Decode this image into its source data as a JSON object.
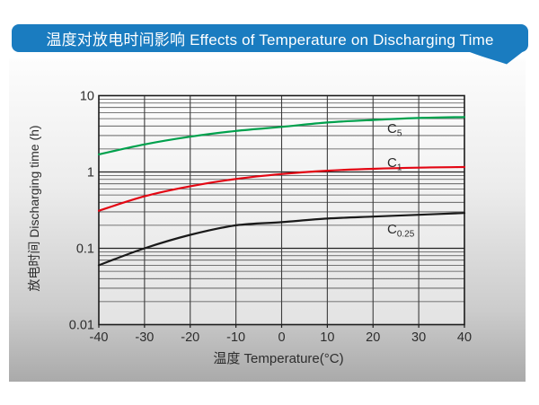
{
  "header": {
    "title": "温度对放电时间影响 Effects of Temperature on Discharging Time",
    "bg_color": "#1A7CC0",
    "text_color": "#FFFFFF"
  },
  "panel": {
    "bg_top": "#FDFDFD",
    "bg_bottom": "#AAAAAA"
  },
  "chart_data": {
    "type": "line",
    "x_label": "温度  Temperature(°C)",
    "y_label": "放电时间 Discharging time (h)",
    "x": [
      -40,
      -30,
      -20,
      -10,
      0,
      10,
      20,
      30,
      40
    ],
    "x_ticks": [
      "-40",
      "-30",
      "-20",
      "-10",
      "0",
      "10",
      "20",
      "30",
      "40"
    ],
    "y_ticks": [
      "10",
      "1",
      "0.1",
      "0.01"
    ],
    "xlim": [
      -40,
      40
    ],
    "ylim": [
      0.01,
      10
    ],
    "y_scale": "log",
    "grid": true,
    "grid_color": "#4D4D4D",
    "axis_color": "#1C1C1C",
    "text_color": "#2D2D2D",
    "series": [
      {
        "name": "C5",
        "label_main": "C",
        "label_sub": "5",
        "color": "#00A14D",
        "values": [
          1.7,
          2.3,
          2.9,
          3.45,
          3.9,
          4.45,
          4.8,
          5.1,
          5.25
        ]
      },
      {
        "name": "C1",
        "label_main": "C",
        "label_sub": "1",
        "color": "#E30613",
        "values": [
          0.31,
          0.48,
          0.65,
          0.81,
          0.94,
          1.04,
          1.1,
          1.14,
          1.16
        ]
      },
      {
        "name": "C0.25",
        "label_main": "C",
        "label_sub": "0.25",
        "color": "#1A1A1A",
        "values": [
          0.06,
          0.1,
          0.15,
          0.2,
          0.22,
          0.245,
          0.26,
          0.275,
          0.29
        ]
      }
    ]
  }
}
